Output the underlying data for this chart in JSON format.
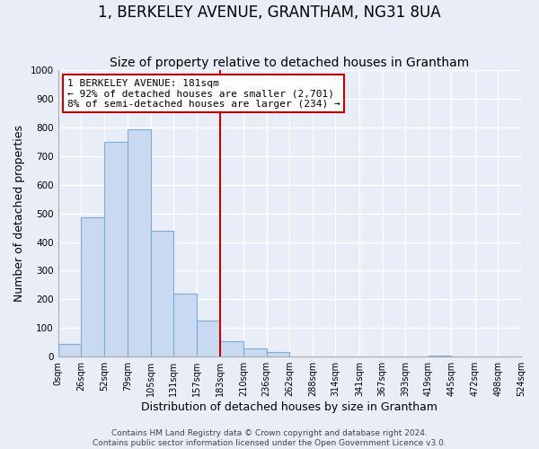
{
  "title": "1, BERKELEY AVENUE, GRANTHAM, NG31 8UA",
  "subtitle": "Size of property relative to detached houses in Grantham",
  "xlabel": "Distribution of detached houses by size in Grantham",
  "ylabel": "Number of detached properties",
  "bin_edges": [
    0,
    26,
    52,
    79,
    105,
    131,
    157,
    183,
    210,
    236,
    262,
    288,
    314,
    341,
    367,
    393,
    419,
    445,
    472,
    498,
    524
  ],
  "bar_heights": [
    45,
    485,
    750,
    795,
    438,
    220,
    125,
    55,
    30,
    15,
    0,
    0,
    0,
    0,
    0,
    0,
    5,
    0,
    0,
    0
  ],
  "bar_color": "#c9d9f0",
  "bar_edge_color": "#7aacd6",
  "vline_x": 183,
  "vline_color": "#cc0000",
  "annotation_title": "1 BERKELEY AVENUE: 181sqm",
  "annotation_line1": "← 92% of detached houses are smaller (2,701)",
  "annotation_line2": "8% of semi-detached houses are larger (234) →",
  "annotation_box_color": "#ffffff",
  "annotation_box_edge": "#cc0000",
  "ylim": [
    0,
    1000
  ],
  "xlim": [
    0,
    524
  ],
  "tick_labels": [
    "0sqm",
    "26sqm",
    "52sqm",
    "79sqm",
    "105sqm",
    "131sqm",
    "157sqm",
    "183sqm",
    "210sqm",
    "236sqm",
    "262sqm",
    "288sqm",
    "314sqm",
    "341sqm",
    "367sqm",
    "393sqm",
    "419sqm",
    "445sqm",
    "472sqm",
    "498sqm",
    "524sqm"
  ],
  "footer_line1": "Contains HM Land Registry data © Crown copyright and database right 2024.",
  "footer_line2": "Contains public sector information licensed under the Open Government Licence v3.0.",
  "background_color": "#e8edf8",
  "grid_color": "#ffffff",
  "grid_lw": 1.0,
  "title_fontsize": 12,
  "subtitle_fontsize": 10,
  "axis_label_fontsize": 9,
  "tick_fontsize": 7,
  "annotation_fontsize": 8,
  "footer_fontsize": 6.5,
  "yticks": [
    0,
    100,
    200,
    300,
    400,
    500,
    600,
    700,
    800,
    900,
    1000
  ]
}
